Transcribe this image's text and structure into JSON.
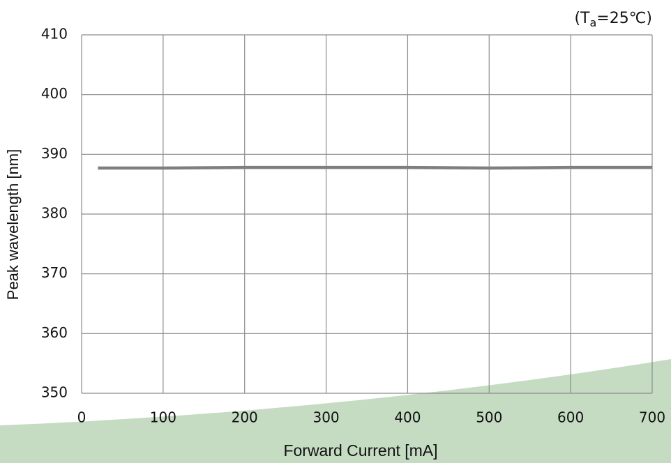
{
  "chart_data": {
    "type": "line",
    "annotation": [
      "(T",
      "a",
      "=25℃)"
    ],
    "x_label": "Forward Current [mA]",
    "y_label": "Peak wavelength [nm]",
    "x": [
      20,
      50,
      100,
      200,
      300,
      400,
      500,
      600,
      700
    ],
    "series": [
      {
        "color": "#7f7f7f",
        "values": [
          387.7,
          387.7,
          387.7,
          387.8,
          387.8,
          387.8,
          387.7,
          387.8,
          387.8
        ]
      }
    ],
    "xlim": [
      0,
      700
    ],
    "xticks": [
      0,
      100,
      200,
      300,
      400,
      500,
      600,
      700
    ],
    "ylim": [
      350,
      410
    ],
    "yticks": [
      350,
      360,
      370,
      380,
      390,
      400,
      410
    ],
    "grid": true
  }
}
